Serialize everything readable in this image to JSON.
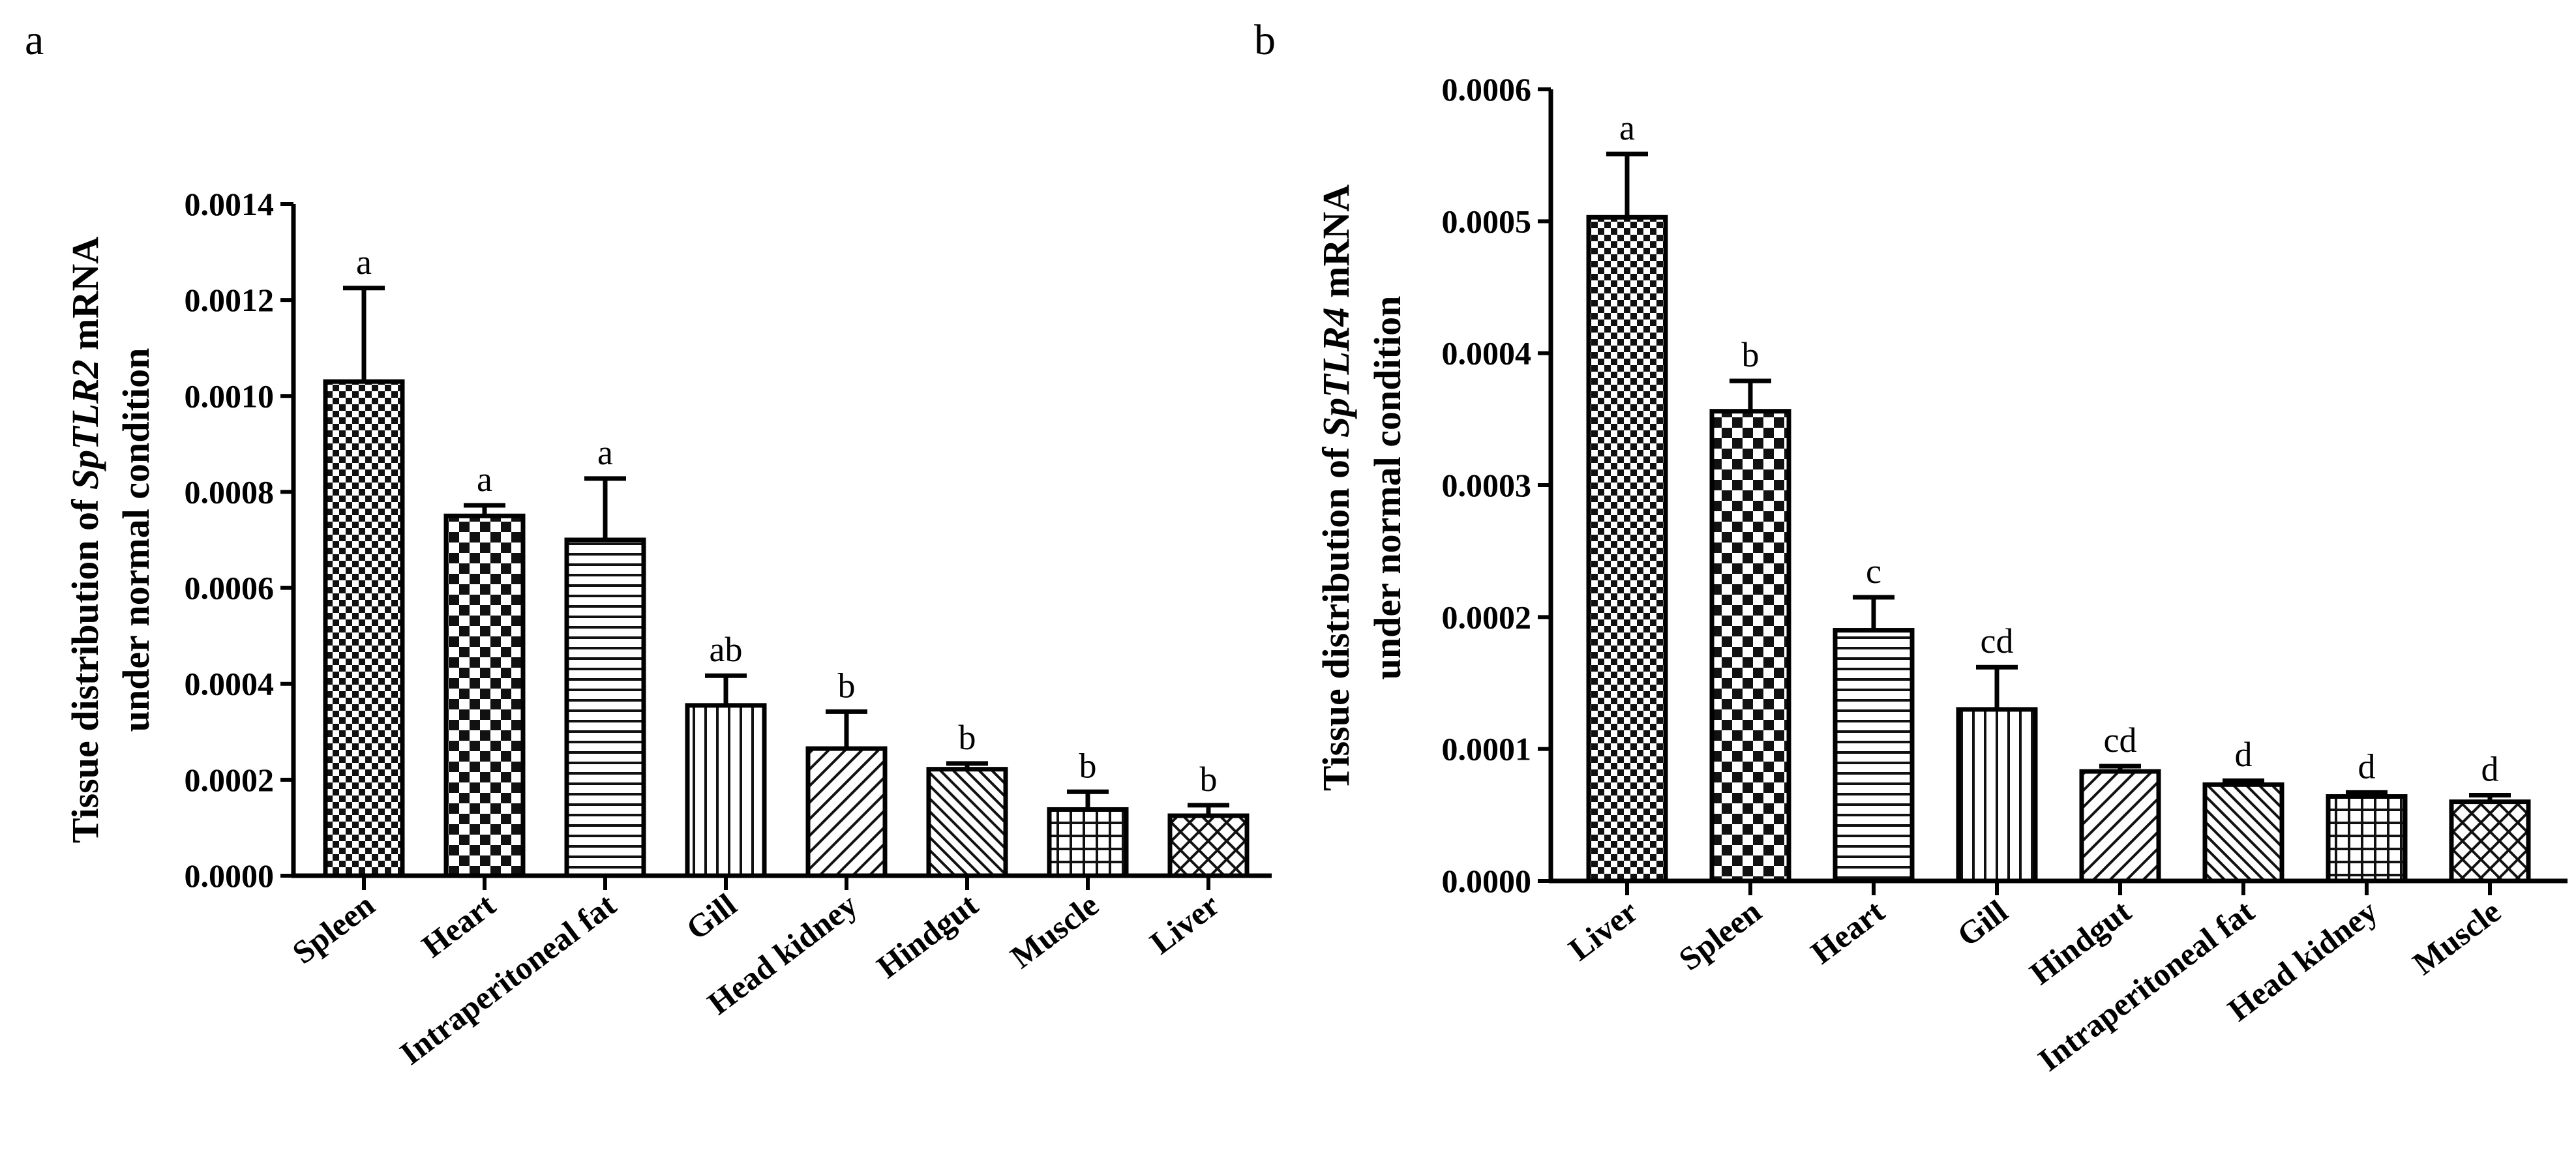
{
  "chart_data": [
    {
      "panel": "a",
      "type": "bar",
      "ylabel_line1_prefix": "Tissue distribution of ",
      "ylabel_line1_gene": "SpTLR2",
      "ylabel_line1_suffix": " mRNA",
      "ylabel_line2": "under normal condition",
      "ylim": [
        0,
        0.0014
      ],
      "ticks": [
        "0.0000",
        "0.0002",
        "0.0004",
        "0.0006",
        "0.0008",
        "0.0010",
        "0.0012",
        "0.0014"
      ],
      "categories": [
        "Spleen",
        "Heart",
        "Intraperitoneal fat",
        "Gill",
        "Head kidney",
        "Hindgut",
        "Muscle",
        "Liver"
      ],
      "values": [
        0.00103,
        0.00075,
        0.0007,
        0.000355,
        0.000265,
        0.000222,
        0.000138,
        0.000125
      ],
      "errors": [
        0.000195,
        2.2e-05,
        0.000128,
        6.2e-05,
        7.7e-05,
        1.2e-05,
        3.7e-05,
        2.2e-05
      ],
      "significance": [
        "a",
        "a",
        "a",
        "ab",
        "b",
        "b",
        "b",
        "b"
      ],
      "patterns": [
        "checker-small",
        "checker-large",
        "horizontal",
        "vertical",
        "diag-fwd",
        "diag-back",
        "grid",
        "diamond"
      ]
    },
    {
      "panel": "b",
      "type": "bar",
      "ylabel_line1_prefix": "Tissue distribution of ",
      "ylabel_line1_gene": "SpTLR4",
      "ylabel_line1_suffix": " mRNA",
      "ylabel_line2": "under normal condition",
      "ylim": [
        0,
        0.0006
      ],
      "ticks": [
        "0.0000",
        "0.0001",
        "0.0002",
        "0.0003",
        "0.0004",
        "0.0005",
        "0.0006"
      ],
      "categories": [
        "Liver",
        "Spleen",
        "Heart",
        "Gill",
        "Hindgut",
        "Intraperitoneal fat",
        "Head kidney",
        "Muscle"
      ],
      "values": [
        0.000503,
        0.000356,
        0.00019,
        0.00013,
        8.3e-05,
        7.3e-05,
        6.4e-05,
        6e-05
      ],
      "errors": [
        4.8e-05,
        2.3e-05,
        2.5e-05,
        3.2e-05,
        4e-06,
        3e-06,
        3e-06,
        5e-06
      ],
      "significance": [
        "a",
        "b",
        "c",
        "cd",
        "cd",
        "d",
        "d",
        "d"
      ],
      "patterns": [
        "checker-small",
        "checker-large",
        "horizontal",
        "vertical",
        "diag-fwd",
        "diag-back",
        "grid",
        "diamond"
      ]
    }
  ]
}
